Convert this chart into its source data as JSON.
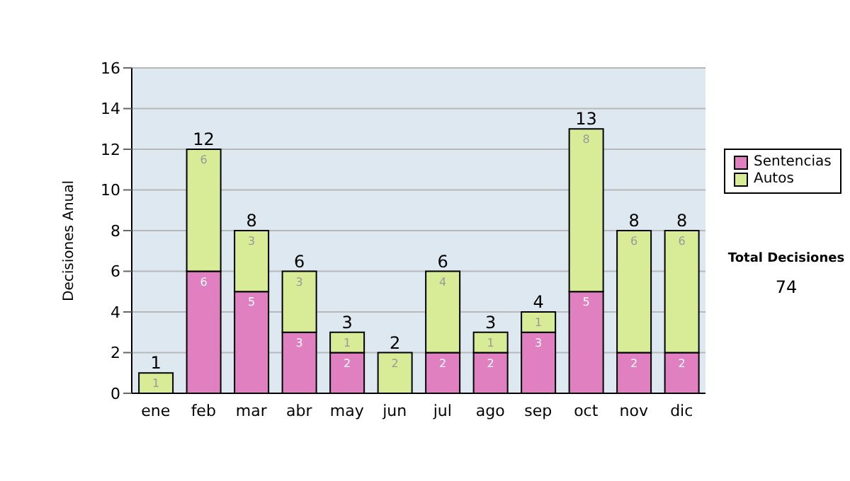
{
  "chart_data": {
    "type": "bar",
    "stacked": true,
    "ylabel": "Decisiones Anual",
    "categories": [
      "ene",
      "feb",
      "mar",
      "abr",
      "may",
      "jun",
      "jul",
      "ago",
      "sep",
      "oct",
      "nov",
      "dic"
    ],
    "series": [
      {
        "name": "Sentencias",
        "color": "#e080c0",
        "values": [
          0,
          6,
          5,
          3,
          2,
          0,
          2,
          2,
          3,
          5,
          2,
          2
        ],
        "value_labels": [
          null,
          "6",
          "5",
          "3",
          "2",
          null,
          "2",
          "2",
          "3",
          "5",
          "2",
          "2"
        ]
      },
      {
        "name": "Autos",
        "color": "#d8ec98",
        "values": [
          1,
          6,
          3,
          3,
          1,
          2,
          4,
          1,
          1,
          8,
          6,
          6
        ],
        "value_labels": [
          "1",
          "6",
          "3",
          "3",
          "1",
          "2",
          "4",
          "1",
          "1",
          "8",
          "6",
          "6"
        ]
      }
    ],
    "totals": [
      "1",
      "12",
      "8",
      "6",
      "3",
      "2",
      "6",
      "3",
      "4",
      "13",
      "8",
      "8"
    ],
    "ylim": [
      0,
      16
    ],
    "yticks": [
      0,
      2,
      4,
      6,
      8,
      10,
      12,
      14,
      16
    ],
    "grid": "y",
    "legend": "right",
    "annotations": [
      "Total Decisiones",
      "74"
    ]
  }
}
